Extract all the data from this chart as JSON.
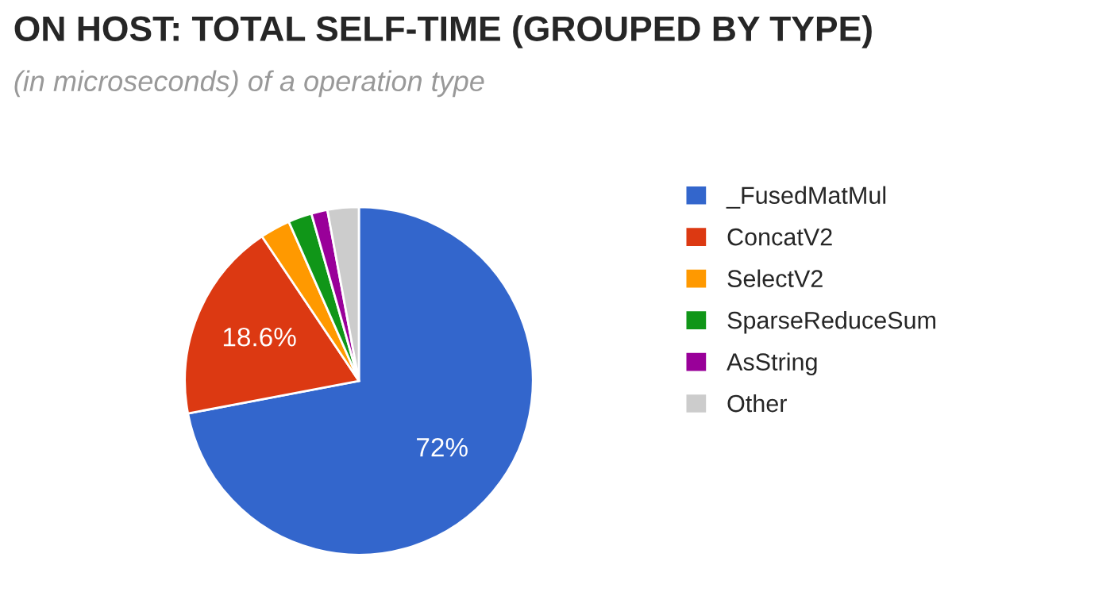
{
  "chart_data": {
    "type": "pie",
    "title": "ON HOST: TOTAL SELF-TIME (GROUPED BY TYPE)",
    "subtitle": "(in microseconds) of a operation type",
    "categories": [
      "_FusedMatMul",
      "ConcatV2",
      "SelectV2",
      "SparseReduceSum",
      "AsString",
      "Other"
    ],
    "values": [
      72,
      18.6,
      2.8,
      2.2,
      1.5,
      2.9
    ],
    "value_labels": [
      "72%",
      "18.6%",
      null,
      null,
      null,
      null
    ],
    "colors": [
      "#3366cc",
      "#dc3912",
      "#ff9900",
      "#109618",
      "#990099",
      "#cccccc"
    ],
    "legend": "right"
  }
}
